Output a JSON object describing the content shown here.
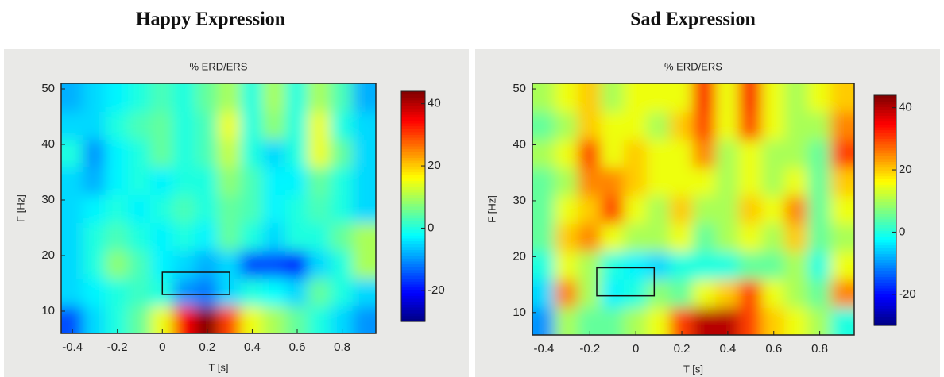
{
  "chart_data": [
    {
      "type": "heatmap",
      "title": "Happy Expression",
      "subtitle": "% ERD/ERS",
      "xlabel": "T [s]",
      "ylabel": "F [Hz]",
      "xlim": [
        -0.45,
        0.95
      ],
      "ylim": [
        6,
        51
      ],
      "xticks": [
        -0.4,
        -0.2,
        0,
        0.2,
        0.4,
        0.6,
        0.8
      ],
      "yticks": [
        10,
        20,
        30,
        40,
        50
      ],
      "clim": [
        -30,
        44
      ],
      "cticks": [
        40,
        20,
        0,
        -20
      ],
      "colormap": "jet",
      "x": [
        -0.4,
        -0.3,
        -0.2,
        -0.1,
        0,
        0.1,
        0.2,
        0.3,
        0.4,
        0.5,
        0.6,
        0.7,
        0.8,
        0.9
      ],
      "y": [
        8.5,
        13.5,
        18.5,
        23.5,
        28.5,
        33.5,
        38.5,
        43.5,
        48.5
      ],
      "z": [
        [
          -15,
          -5,
          0,
          5,
          15,
          35,
          44,
          30,
          15,
          10,
          5,
          0,
          -5,
          -10
        ],
        [
          -5,
          -3,
          0,
          2,
          0,
          -10,
          -12,
          -5,
          0,
          -2,
          -5,
          5,
          0,
          -5
        ],
        [
          -5,
          0,
          8,
          3,
          -3,
          -5,
          -8,
          -5,
          -15,
          -15,
          -18,
          -5,
          0,
          10
        ],
        [
          -5,
          0,
          3,
          0,
          -3,
          0,
          -3,
          5,
          0,
          -5,
          0,
          0,
          5,
          10
        ],
        [
          -5,
          -3,
          0,
          -3,
          0,
          3,
          0,
          5,
          3,
          -3,
          0,
          3,
          0,
          -5
        ],
        [
          -5,
          -8,
          -3,
          0,
          -3,
          0,
          0,
          8,
          3,
          -3,
          -3,
          5,
          0,
          -5
        ],
        [
          0,
          -10,
          -3,
          0,
          5,
          0,
          3,
          12,
          0,
          -5,
          0,
          15,
          5,
          -5
        ],
        [
          -5,
          -5,
          0,
          3,
          5,
          0,
          3,
          15,
          0,
          8,
          0,
          15,
          0,
          -5
        ],
        [
          -8,
          -5,
          -3,
          0,
          3,
          0,
          5,
          10,
          0,
          10,
          0,
          10,
          3,
          -8
        ]
      ],
      "box": {
        "x": [
          0,
          0.3
        ],
        "y": [
          13,
          17
        ]
      }
    },
    {
      "type": "heatmap",
      "title": "Sad Expression",
      "subtitle": "% ERD/ERS",
      "xlabel": "T [s]",
      "ylabel": "F [Hz]",
      "xlim": [
        -0.45,
        0.95
      ],
      "ylim": [
        6,
        51
      ],
      "xticks": [
        -0.4,
        -0.2,
        0,
        0.2,
        0.4,
        0.6,
        0.8
      ],
      "yticks": [
        10,
        20,
        30,
        40,
        50
      ],
      "clim": [
        -30,
        44
      ],
      "cticks": [
        40,
        20,
        0,
        -20
      ],
      "colormap": "jet",
      "x": [
        -0.4,
        -0.3,
        -0.2,
        -0.1,
        0,
        0.1,
        0.2,
        0.3,
        0.4,
        0.5,
        0.6,
        0.7,
        0.8,
        0.9
      ],
      "y": [
        8.5,
        13.5,
        18.5,
        23.5,
        28.5,
        33.5,
        38.5,
        43.5,
        48.5
      ],
      "z": [
        [
          -10,
          10,
          5,
          5,
          10,
          15,
          30,
          40,
          40,
          30,
          20,
          15,
          10,
          0
        ],
        [
          -5,
          25,
          10,
          -3,
          0,
          8,
          5,
          15,
          20,
          30,
          15,
          10,
          5,
          25
        ],
        [
          0,
          15,
          10,
          0,
          -3,
          -5,
          0,
          0,
          0,
          5,
          5,
          10,
          0,
          15
        ],
        [
          5,
          20,
          25,
          15,
          10,
          10,
          15,
          5,
          10,
          15,
          10,
          20,
          5,
          10
        ],
        [
          5,
          15,
          20,
          30,
          15,
          10,
          20,
          10,
          10,
          20,
          15,
          25,
          5,
          15
        ],
        [
          5,
          10,
          25,
          25,
          20,
          15,
          15,
          15,
          10,
          15,
          10,
          15,
          5,
          20
        ],
        [
          10,
          15,
          30,
          15,
          20,
          15,
          15,
          25,
          10,
          15,
          10,
          10,
          5,
          30
        ],
        [
          5,
          10,
          20,
          15,
          15,
          10,
          20,
          30,
          15,
          30,
          15,
          10,
          10,
          25
        ],
        [
          10,
          15,
          20,
          10,
          15,
          15,
          15,
          35,
          15,
          35,
          15,
          10,
          15,
          20
        ]
      ],
      "box": {
        "x": [
          -0.17,
          0.08
        ],
        "y": [
          13,
          18
        ]
      }
    }
  ]
}
